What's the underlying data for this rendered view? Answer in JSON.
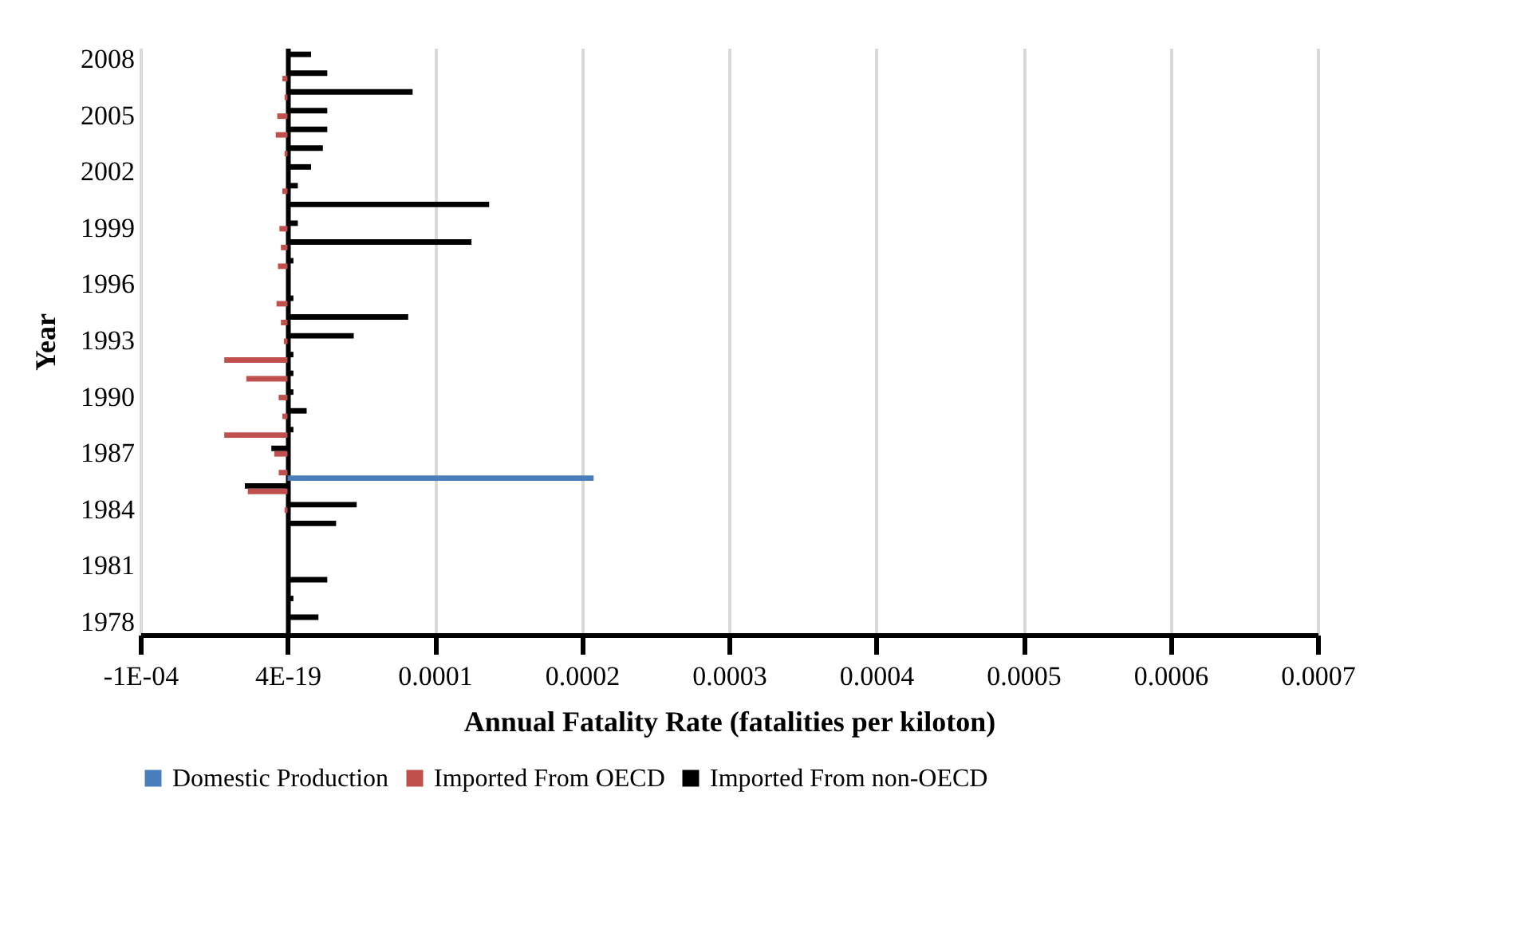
{
  "chart_data": {
    "type": "bar",
    "orientation": "horizontal",
    "xlabel": "Annual Fatality Rate (fatalities per kiloton)",
    "ylabel": "Year",
    "categories": [
      "2008",
      null,
      null,
      "2005",
      null,
      null,
      "2002",
      null,
      null,
      "1999",
      null,
      null,
      "1996",
      null,
      null,
      "1993",
      null,
      null,
      "1990",
      null,
      null,
      "1987",
      null,
      null,
      "1984",
      null,
      null,
      "1981",
      null,
      null,
      "1978"
    ],
    "series": [
      {
        "name": "Domestic Production",
        "color": "#4a7ebb",
        "values": [
          null,
          null,
          null,
          null,
          null,
          null,
          null,
          null,
          null,
          null,
          null,
          null,
          null,
          null,
          null,
          null,
          null,
          null,
          null,
          null,
          null,
          null,
          0.000208,
          null,
          null,
          null,
          null,
          null,
          null,
          null,
          null
        ]
      },
      {
        "name": "Imported From OECD",
        "color": "#c0504d",
        "values": [
          null,
          -3.5e-06,
          -2e-06,
          -7e-06,
          -8e-06,
          -2e-06,
          null,
          -3.5e-06,
          null,
          -5.5e-06,
          -4.5e-06,
          -6.5e-06,
          null,
          -7.5e-06,
          -4.5e-06,
          -2.5e-06,
          -4.3e-05,
          -2.8e-05,
          -6e-06,
          -3.5e-06,
          -4.3e-05,
          -9e-06,
          -6e-06,
          -2.7e-05,
          -2e-06,
          null,
          null,
          null,
          null,
          null,
          null
        ]
      },
      {
        "name": "Imported From non-OECD",
        "color": "#000000",
        "values": [
          1.6e-05,
          2.7e-05,
          8.5e-05,
          2.7e-05,
          2.7e-05,
          2.4e-05,
          1.6e-05,
          7e-06,
          0.000137,
          7e-06,
          0.000125,
          4e-06,
          null,
          4e-06,
          8.2e-05,
          4.5e-05,
          4e-06,
          4e-06,
          4e-06,
          1.3e-05,
          4e-06,
          -1.1e-05,
          null,
          -2.9e-05,
          4.7e-05,
          3.3e-05,
          null,
          null,
          2.7e-05,
          4e-06,
          2.1e-05
        ]
      }
    ],
    "xlim": [
      -0.0001,
      0.0007
    ],
    "xticks": [
      {
        "value": -0.0001,
        "label": "-1E-04"
      },
      {
        "value": 0,
        "label": "4E-19"
      },
      0.0001,
      0.0002,
      0.0003,
      0.0004,
      0.0005,
      0.0006,
      0.0007
    ],
    "grid": "x",
    "legend": "bottom"
  }
}
